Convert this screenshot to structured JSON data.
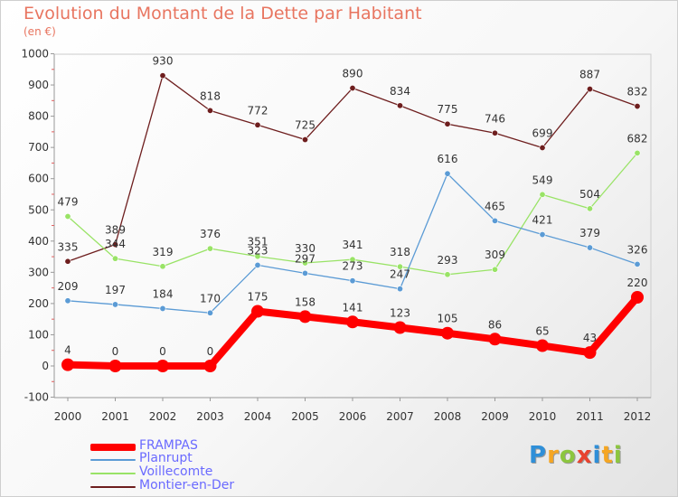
{
  "header": {
    "title": "Evolution du Montant de la Dette par Habitant",
    "unit": "(en €)"
  },
  "chart_data": {
    "type": "line",
    "x": [
      "2000",
      "2001",
      "2002",
      "2003",
      "2004",
      "2005",
      "2006",
      "2007",
      "2008",
      "2009",
      "2010",
      "2011",
      "2012"
    ],
    "ylim": [
      -100,
      1000
    ],
    "yticks": [
      "1000",
      "900",
      "800",
      "700",
      "600",
      "500",
      "400",
      "300",
      "200",
      "100",
      "0",
      "-100"
    ],
    "grid": false,
    "legend_position": "bottom-left",
    "series": [
      {
        "name": "FRAMPAS",
        "color": "#ff0000",
        "values": [
          4,
          0,
          0,
          0,
          175,
          158,
          141,
          123,
          105,
          86,
          65,
          43,
          220
        ],
        "labels": [
          "4",
          "0",
          "0",
          "0",
          "175",
          "158",
          "141",
          "123",
          "105",
          "86",
          "65",
          "43",
          "220"
        ]
      },
      {
        "name": "Planrupt",
        "color": "#5b9bd5",
        "values": [
          209,
          197,
          184,
          170,
          323,
          297,
          273,
          247,
          616,
          465,
          421,
          379,
          326
        ],
        "labels": [
          "209",
          "197",
          "184",
          "170",
          "323",
          "297",
          "273",
          "247",
          "616",
          "465",
          "421",
          "379",
          "326"
        ]
      },
      {
        "name": "Voillecomte",
        "color": "#99e366",
        "values": [
          479,
          344,
          319,
          376,
          351,
          330,
          341,
          318,
          293,
          309,
          549,
          504,
          682
        ],
        "labels": [
          "479",
          "344",
          "319",
          "376",
          "351",
          "330",
          "341",
          "318",
          "293",
          "309",
          "549",
          "504",
          "682"
        ]
      },
      {
        "name": "Montier-en-Der",
        "color": "#6e1e1e",
        "values": [
          335,
          389,
          930,
          818,
          772,
          725,
          890,
          834,
          775,
          746,
          699,
          887,
          832
        ],
        "labels": [
          "335",
          "389",
          "930",
          "818",
          "772",
          "725",
          "890",
          "834",
          "775",
          "746",
          "699",
          "887",
          "832"
        ]
      }
    ]
  },
  "logo": {
    "letters": [
      "P",
      "r",
      "o",
      "x",
      "i",
      "t",
      "i"
    ],
    "colors": [
      "#2f8fd8",
      "#f5a623",
      "#8cc63f",
      "#e8432f",
      "#2f8fd8",
      "#f5a623",
      "#8cc63f"
    ]
  }
}
